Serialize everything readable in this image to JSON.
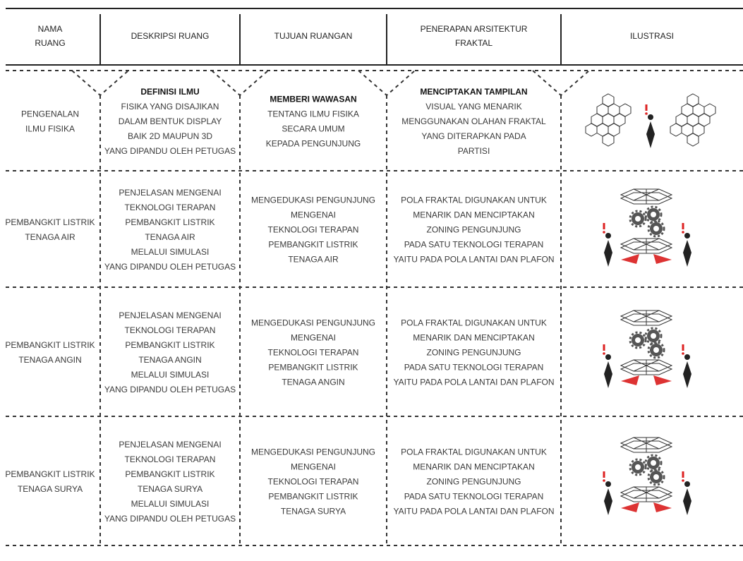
{
  "table": {
    "headers": [
      [
        "NAMA",
        "RUANG"
      ],
      [
        "DESKRIPSI RUANG"
      ],
      [
        "TUJUAN RUANGAN"
      ],
      [
        "PENERAPAN ARSITEKTUR",
        "FRAKTAL"
      ],
      [
        "ILUSTRASI"
      ]
    ],
    "rows": [
      [
        [
          "PENGENALAN",
          "ILMU FISIKA"
        ],
        [
          "DEFINISI ILMU",
          "FISIKA YANG DISAJIKAN",
          "DALAM BENTUK DISPLAY",
          "BAIK 2D MAUPUN 3D",
          "YANG DIPANDU OLEH PETUGAS"
        ],
        [
          "MEMBERI WAWASAN",
          "TENTANG ILMU FISIKA",
          "SECARA UMUM",
          "KEPADA PENGUNJUNG"
        ],
        [
          "MENCIPTAKAN TAMPILAN",
          "VISUAL YANG MENARIK",
          "MENGGUNAKAN OLAHAN FRAKTAL",
          "YANG DITERAPKAN PADA",
          "PARTISI"
        ]
      ],
      [
        [
          "PEMBANGKIT LISTRIK",
          "TENAGA AIR"
        ],
        [
          "PENJELASAN MENGENAI",
          "TEKNOLOGI TERAPAN",
          "PEMBANGKIT LISTRIK",
          "TENAGA AIR",
          "MELALUI SIMULASI",
          "YANG DIPANDU OLEH PETUGAS"
        ],
        [
          "MENGEDUKASI PENGUNJUNG",
          "MENGENAI",
          "TEKNOLOGI TERAPAN",
          "PEMBANGKIT LISTRIK",
          "TENAGA AIR"
        ],
        [
          "POLA FRAKTAL DIGUNAKAN UNTUK",
          "MENARIK DAN MENCIPTAKAN",
          "ZONING PENGUNJUNG",
          "PADA SATU TEKNOLOGI TERAPAN",
          "YAITU PADA POLA LANTAI DAN PLAFON"
        ]
      ],
      [
        [
          "PEMBANGKIT LISTRIK",
          "TENAGA ANGIN"
        ],
        [
          "PENJELASAN MENGENAI",
          "TEKNOLOGI TERAPAN",
          "PEMBANGKIT LISTRIK",
          "TENAGA ANGIN",
          "MELALUI SIMULASI",
          "YANG DIPANDU OLEH PETUGAS"
        ],
        [
          "MENGEDUKASI PENGUNJUNG",
          "MENGENAI",
          "TEKNOLOGI TERAPAN",
          "PEMBANGKIT LISTRIK",
          "TENAGA ANGIN"
        ],
        [
          "POLA FRAKTAL DIGUNAKAN UNTUK",
          "MENARIK DAN MENCIPTAKAN",
          "ZONING PENGUNJUNG",
          "PADA SATU TEKNOLOGI TERAPAN",
          "YAITU PADA POLA LANTAI DAN PLAFON"
        ]
      ],
      [
        [
          "PEMBANGKIT LISTRIK",
          "TENAGA SURYA"
        ],
        [
          "PENJELASAN MENGENAI",
          "TEKNOLOGI TERAPAN",
          "PEMBANGKIT LISTRIK",
          "TENAGA SURYA",
          "MELALUI SIMULASI",
          "YANG DIPANDU OLEH PETUGAS"
        ],
        [
          "MENGEDUKASI PENGUNJUNG",
          "MENGENAI",
          "TEKNOLOGI TERAPAN",
          "PEMBANGKIT LISTRIK",
          "TENAGA SURYA"
        ],
        [
          "POLA FRAKTAL DIGUNAKAN UNTUK",
          "MENARIK DAN MENCIPTAKAN",
          "ZONING PENGUNJUNG",
          "PADA SATU TEKNOLOGI TERAPAN",
          "YAITU PADA POLA LANTAI DAN PLAFON"
        ]
      ]
    ]
  }
}
